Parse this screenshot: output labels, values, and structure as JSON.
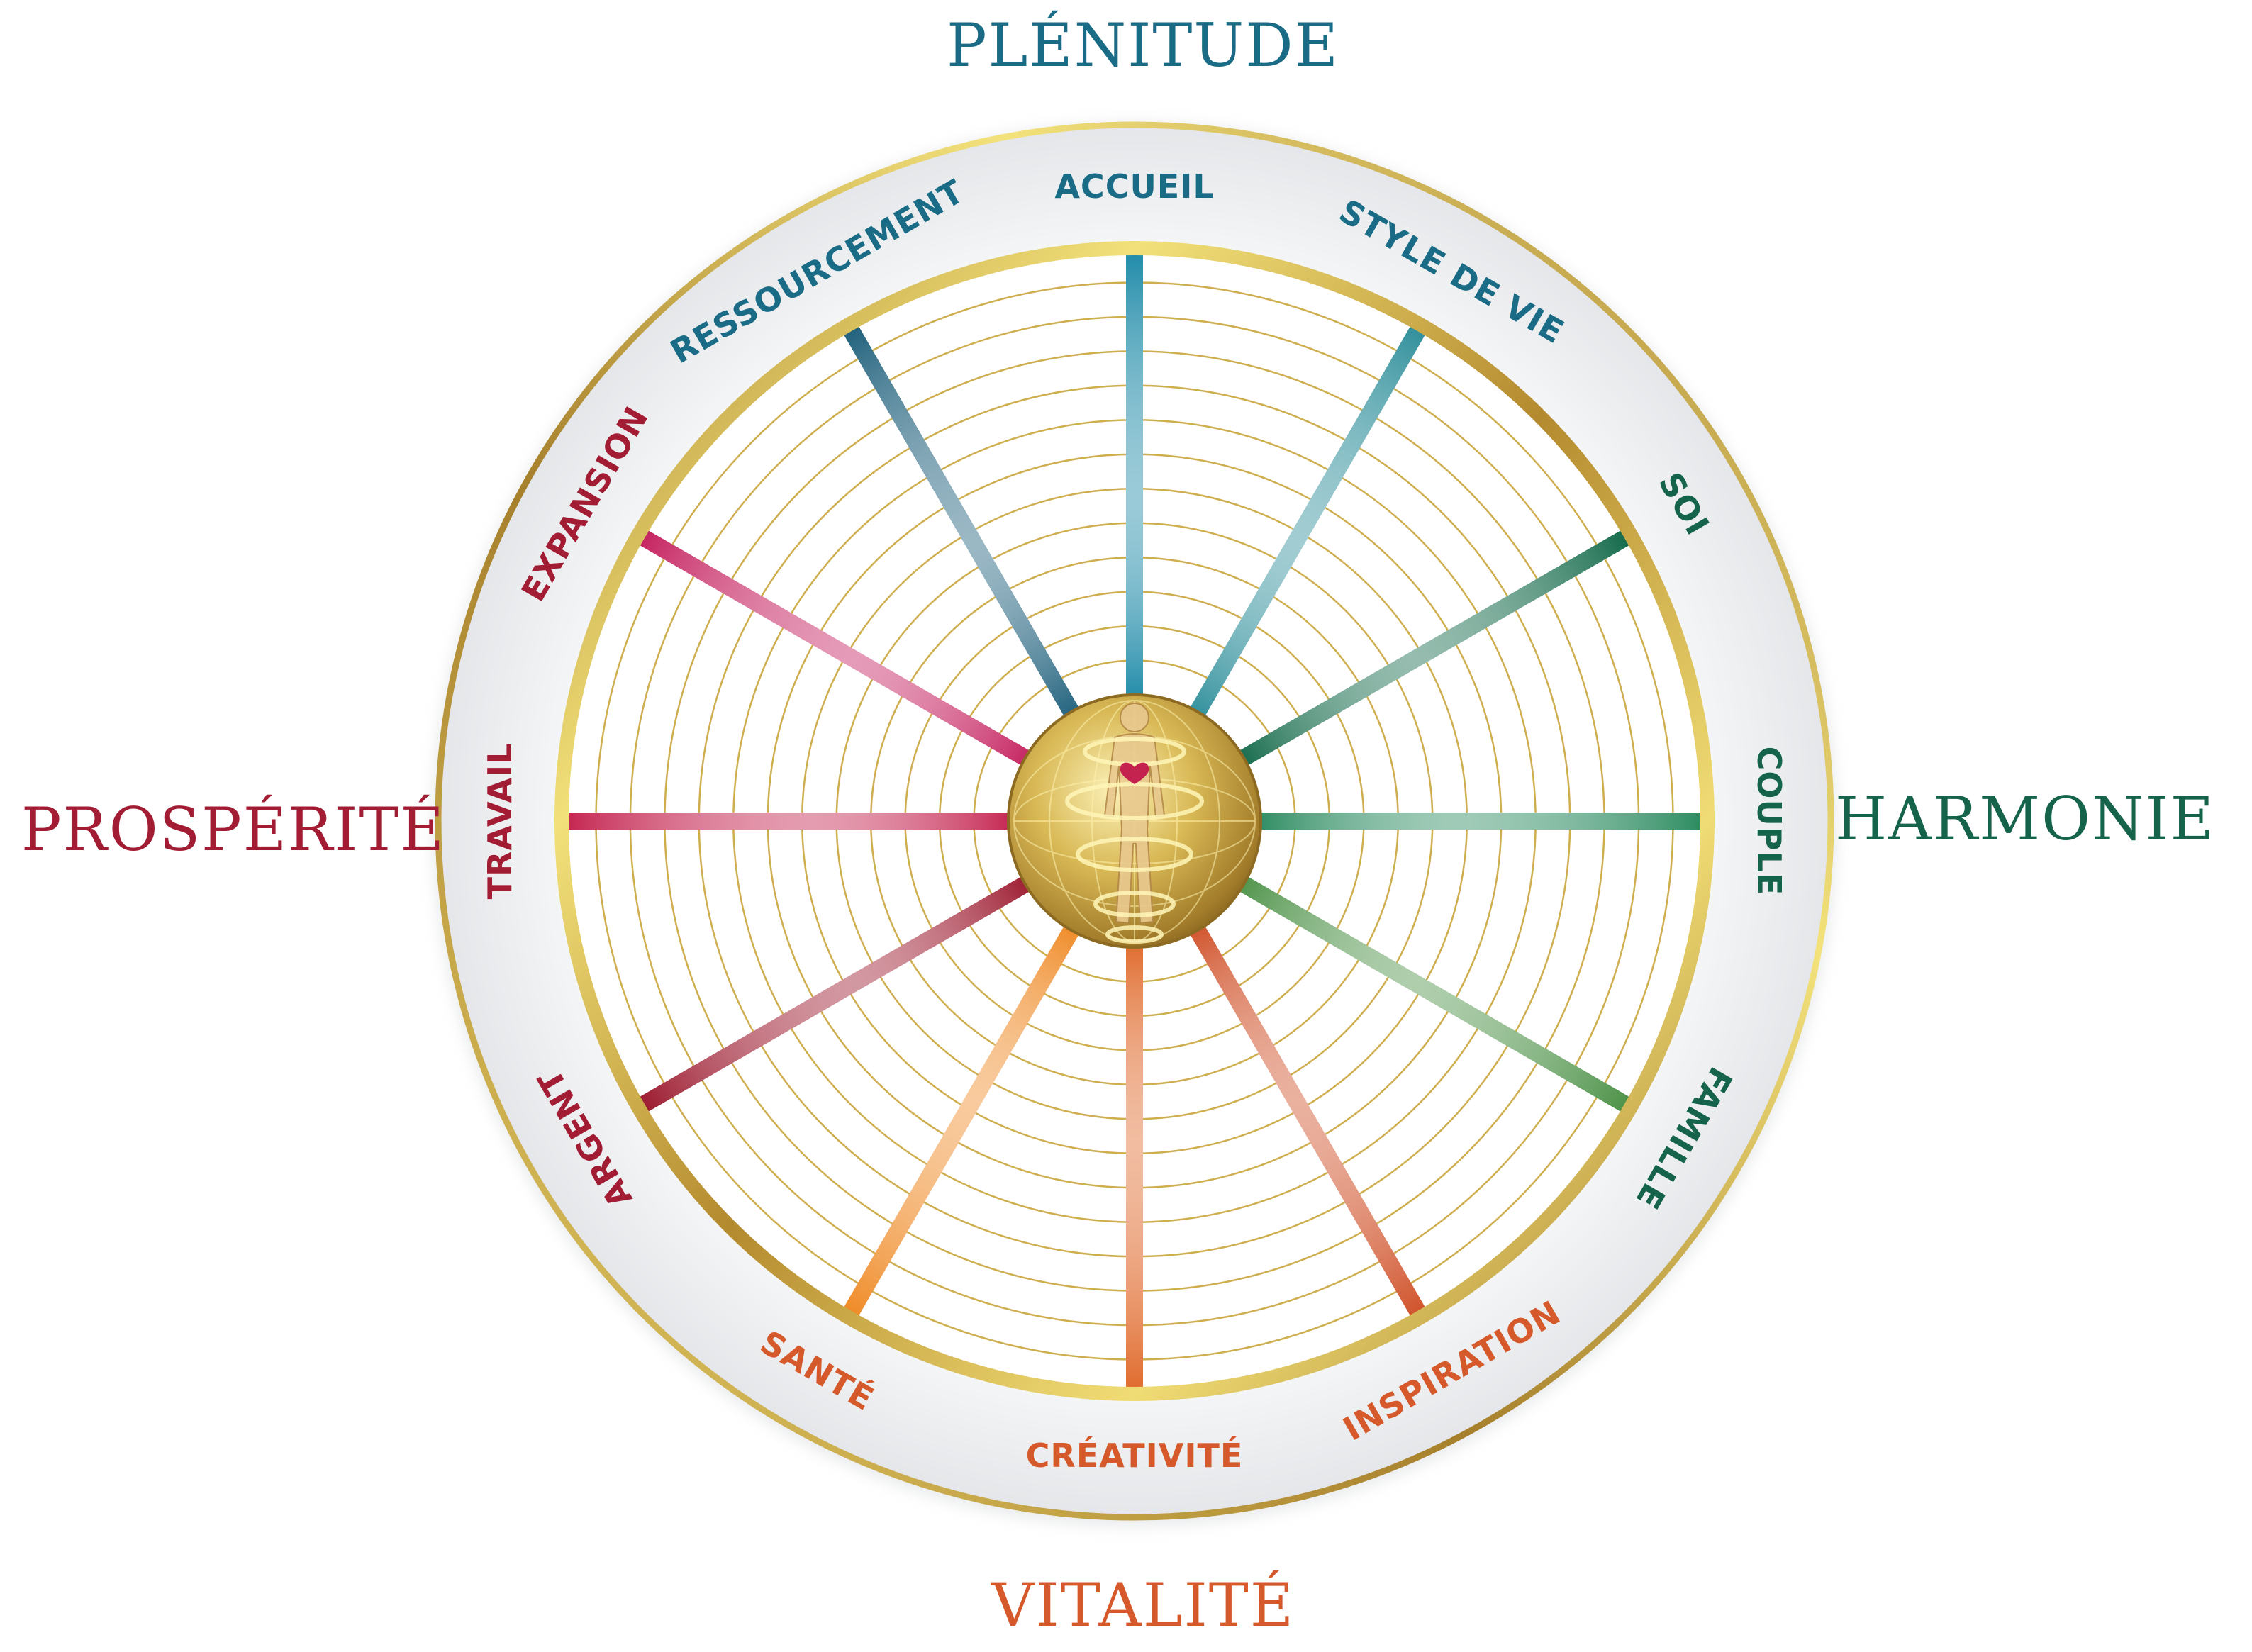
{
  "quadrants": {
    "top": {
      "label": "PLÉNITUDE",
      "color": "#1a6c86"
    },
    "right": {
      "label": "HARMONIE",
      "color": "#15634a"
    },
    "bottom": {
      "label": "VITALITÉ",
      "color": "#d5592a"
    },
    "left": {
      "label": "PROSPÉRITÉ",
      "color": "#a21c33"
    }
  },
  "segments": [
    {
      "label": "ACCUEIL",
      "color": "#1e8aa8",
      "text_color": "#1a6c86",
      "angle_deg": 0
    },
    {
      "label": "STYLE DE VIE",
      "color": "#2f8f9b",
      "text_color": "#1a6c86",
      "angle_deg": 30
    },
    {
      "label": "SOI",
      "color": "#146a4b",
      "text_color": "#15634a",
      "angle_deg": 60
    },
    {
      "label": "COUPLE",
      "color": "#2a8a5f",
      "text_color": "#15634a",
      "angle_deg": 90
    },
    {
      "label": "FAMILLE",
      "color": "#4d9248",
      "text_color": "#15634a",
      "angle_deg": 120
    },
    {
      "label": "INSPIRATION",
      "color": "#d0522a",
      "text_color": "#d5592a",
      "angle_deg": 150
    },
    {
      "label": "CRÉATIVITÉ",
      "color": "#e06a2c",
      "text_color": "#d5592a",
      "angle_deg": 180
    },
    {
      "label": "SANTÉ",
      "color": "#ef8a26",
      "text_color": "#d5592a",
      "angle_deg": 210
    },
    {
      "label": "ARGENT",
      "color": "#9c1a2f",
      "text_color": "#a21c33",
      "angle_deg": 240
    },
    {
      "label": "TRAVAIL",
      "color": "#c4234f",
      "text_color": "#a21c33",
      "angle_deg": 270
    },
    {
      "label": "EXPANSION",
      "color": "#c52260",
      "text_color": "#a21c33",
      "angle_deg": 300
    },
    {
      "label": "RESSOURCEMENT",
      "color": "#1f607c",
      "text_color": "#1a6c86",
      "angle_deg": 330
    }
  ],
  "wheel": {
    "ring_count": 12,
    "gold_color": "#c9a53c",
    "gold_light": "#f2e17a",
    "band_color": "#eef0f2",
    "heart_color": "#c4234f"
  }
}
